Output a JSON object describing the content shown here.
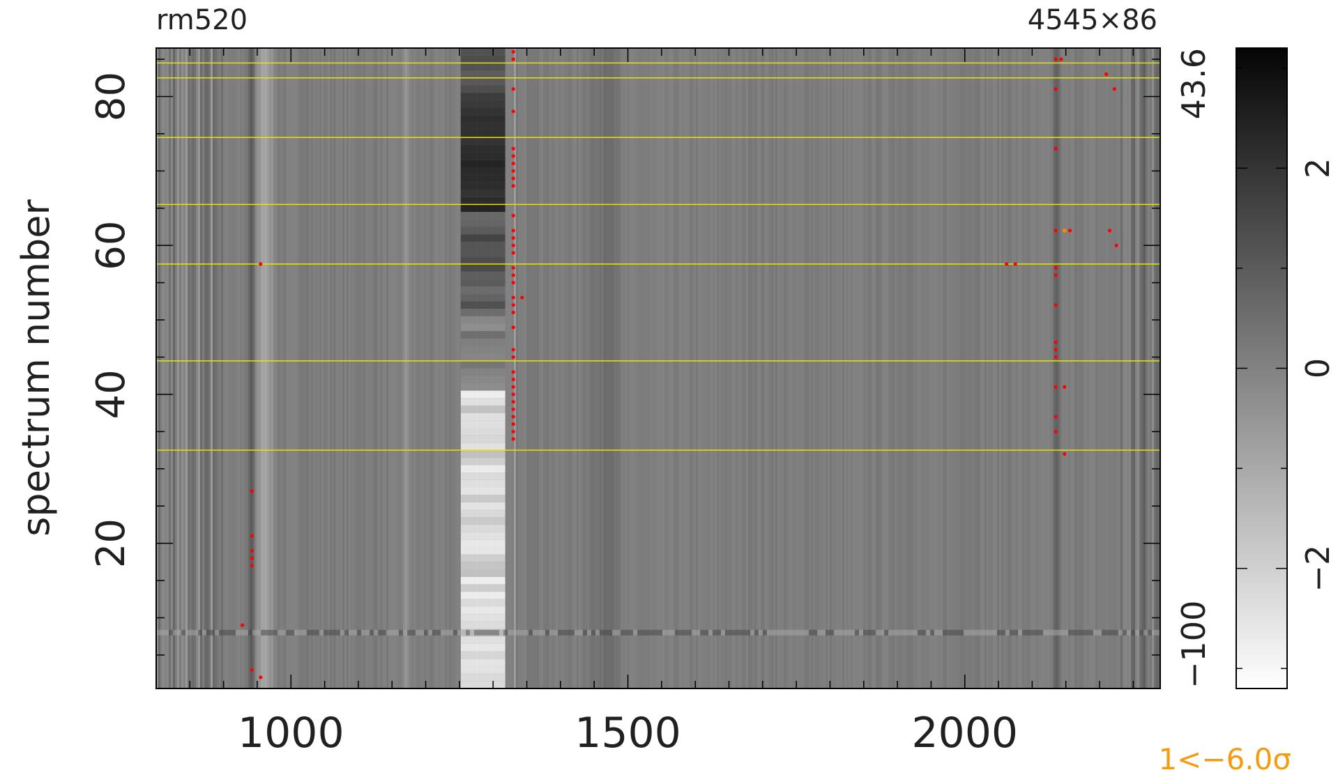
{
  "header": {
    "left_label": "rm520",
    "right_label": "4545×86"
  },
  "footer": {
    "sigma_note": "1<−6.0σ",
    "sigma_note_color": "#f39c12"
  },
  "chart_data": {
    "type": "heatmap",
    "title": "",
    "xlabel": "",
    "ylabel": "spectrum number",
    "xlim": [
      800,
      2290
    ],
    "ylim": [
      1,
      86
    ],
    "x_ticks": [
      1000,
      1500,
      2000
    ],
    "y_ticks": [
      20,
      40,
      60,
      80
    ],
    "right_axis_labels": [
      {
        "value": 86,
        "label": "43.6"
      },
      {
        "value": 1,
        "label": "−100"
      }
    ],
    "colorbar": {
      "range": [
        -3.2,
        3.2
      ],
      "ticks": [
        -2,
        0,
        2
      ],
      "colormap": "white-to-black"
    },
    "highlighted_rows": [
      32.5,
      44.5,
      57.5,
      65.5,
      74.5,
      82.5,
      84.5
    ],
    "highlight_color": "#e6e600",
    "flag_color": "#ff0000",
    "flag_color_alt": "#ff8c00",
    "flags": [
      {
        "x": 1330,
        "y": 86
      },
      {
        "x": 1330,
        "y": 85
      },
      {
        "x": 1330,
        "y": 81
      },
      {
        "x": 1330,
        "y": 78
      },
      {
        "x": 1330,
        "y": 73
      },
      {
        "x": 1330,
        "y": 72
      },
      {
        "x": 1330,
        "y": 71
      },
      {
        "x": 1330,
        "y": 70
      },
      {
        "x": 1330,
        "y": 69
      },
      {
        "x": 1330,
        "y": 68
      },
      {
        "x": 1330,
        "y": 64
      },
      {
        "x": 1330,
        "y": 62
      },
      {
        "x": 1330,
        "y": 61
      },
      {
        "x": 1330,
        "y": 60
      },
      {
        "x": 1330,
        "y": 59
      },
      {
        "x": 1330,
        "y": 57
      },
      {
        "x": 1330,
        "y": 56
      },
      {
        "x": 1330,
        "y": 55
      },
      {
        "x": 1330,
        "y": 53
      },
      {
        "x": 1330,
        "y": 52
      },
      {
        "x": 1330,
        "y": 51
      },
      {
        "x": 1330,
        "y": 49
      },
      {
        "x": 1330,
        "y": 46
      },
      {
        "x": 1330,
        "y": 45
      },
      {
        "x": 1330,
        "y": 43
      },
      {
        "x": 1330,
        "y": 42
      },
      {
        "x": 1330,
        "y": 41
      },
      {
        "x": 1330,
        "y": 40
      },
      {
        "x": 1330,
        "y": 39
      },
      {
        "x": 1330,
        "y": 38
      },
      {
        "x": 1330,
        "y": 37
      },
      {
        "x": 1330,
        "y": 36
      },
      {
        "x": 1330,
        "y": 35
      },
      {
        "x": 1330,
        "y": 34
      },
      {
        "x": 1343,
        "y": 53
      },
      {
        "x": 955,
        "y": 57.5
      },
      {
        "x": 942,
        "y": 27
      },
      {
        "x": 942,
        "y": 21
      },
      {
        "x": 942,
        "y": 19
      },
      {
        "x": 942,
        "y": 18
      },
      {
        "x": 942,
        "y": 17
      },
      {
        "x": 928,
        "y": 9
      },
      {
        "x": 942,
        "y": 3
      },
      {
        "x": 955,
        "y": 2
      },
      {
        "x": 2062,
        "y": 57.5
      },
      {
        "x": 2075,
        "y": 57.5
      },
      {
        "x": 2135,
        "y": 85
      },
      {
        "x": 2143,
        "y": 85
      },
      {
        "x": 2135,
        "y": 81
      },
      {
        "x": 2135,
        "y": 73
      },
      {
        "x": 2135,
        "y": 62
      },
      {
        "x": 2148,
        "y": 62
      },
      {
        "x": 2156,
        "y": 62
      },
      {
        "x": 2135,
        "y": 57
      },
      {
        "x": 2135,
        "y": 56
      },
      {
        "x": 2135,
        "y": 52
      },
      {
        "x": 2135,
        "y": 47
      },
      {
        "x": 2135,
        "y": 46
      },
      {
        "x": 2135,
        "y": 45
      },
      {
        "x": 2135,
        "y": 41
      },
      {
        "x": 2148,
        "y": 41
      },
      {
        "x": 2135,
        "y": 37
      },
      {
        "x": 2135,
        "y": 35
      },
      {
        "x": 2148,
        "y": 32
      },
      {
        "x": 2210,
        "y": 83
      },
      {
        "x": 2222,
        "y": 81
      },
      {
        "x": 2215,
        "y": 62
      },
      {
        "x": 2225,
        "y": 60
      }
    ],
    "alt_flags": [
      {
        "x": 2148,
        "y": 62
      }
    ]
  }
}
